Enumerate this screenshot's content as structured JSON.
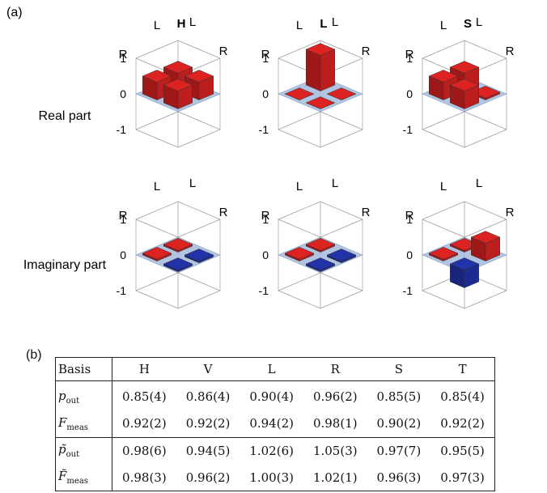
{
  "panel_a_label": "(a)",
  "panel_b_label": "(b)",
  "columns": [
    {
      "title": "H",
      "real": [
        [
          0.5,
          0.5,
          0.5,
          0.5
        ]
      ],
      "imag": [
        [
          0.05,
          -0.05,
          0.05,
          -0.05
        ]
      ]
    },
    {
      "title": "L",
      "real": [
        [
          1.0,
          0.0,
          0.0,
          0.0
        ]
      ],
      "imag": [
        [
          0.05,
          -0.05,
          0.05,
          -0.05
        ]
      ]
    },
    {
      "title": "S",
      "real": [
        [
          0.5,
          0.05,
          0.5,
          0.5
        ]
      ],
      "imag": [
        [
          0.05,
          0.5,
          0.05,
          -0.5
        ]
      ]
    }
  ],
  "row_labels": {
    "real": "Real part",
    "imag": "Imaginary part"
  },
  "axis_labels": {
    "ticks": [
      "1",
      "0",
      "-1"
    ],
    "corner_L": "L",
    "corner_R": "R"
  },
  "colors": {
    "positive": "#dd2222",
    "negative": "#2233aa",
    "plane": "#a9bfe0"
  },
  "table": {
    "header": [
      "Basis",
      "H",
      "V",
      "L",
      "R",
      "S",
      "T"
    ],
    "group1": [
      {
        "label_main": "p",
        "label_sub": "out",
        "values": [
          "0.85(4)",
          "0.86(4)",
          "0.90(4)",
          "0.96(2)",
          "0.85(5)",
          "0.85(4)"
        ]
      },
      {
        "label_main": "F",
        "label_sub": "meas",
        "values": [
          "0.92(2)",
          "0.92(2)",
          "0.94(2)",
          "0.98(1)",
          "0.90(2)",
          "0.92(2)"
        ]
      }
    ],
    "group2": [
      {
        "label_main": "p̃",
        "label_sub": "out",
        "values": [
          "0.98(6)",
          "0.94(5)",
          "1.02(6)",
          "1.05(3)",
          "0.97(7)",
          "0.95(5)"
        ]
      },
      {
        "label_main": "F̃",
        "label_sub": "meas",
        "values": [
          "0.98(3)",
          "0.96(2)",
          "1.00(3)",
          "1.02(1)",
          "0.96(3)",
          "0.97(3)"
        ]
      }
    ]
  }
}
